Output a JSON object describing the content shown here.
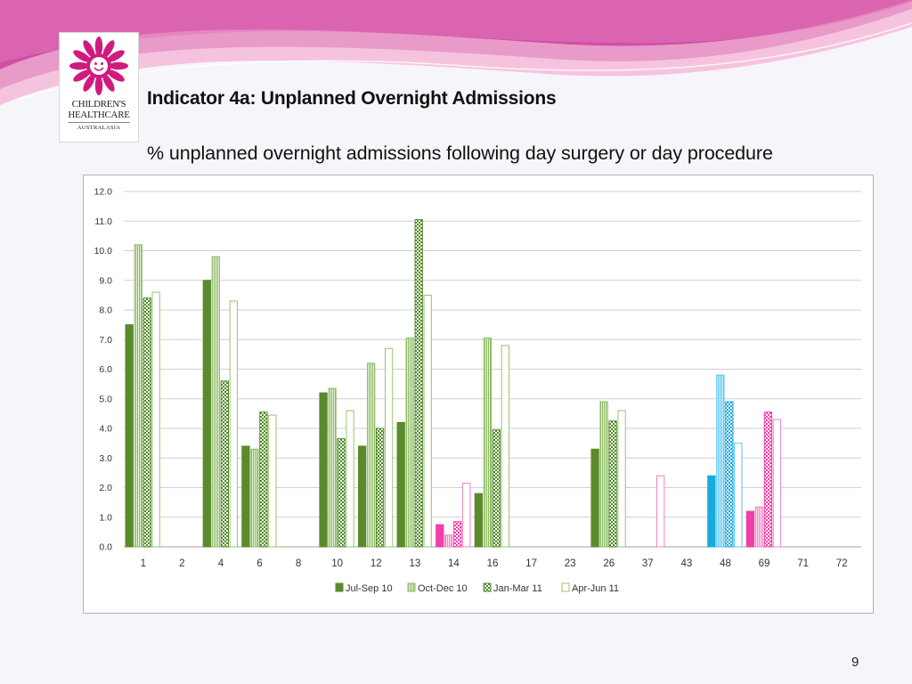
{
  "slide": {
    "title": "Indicator 4a: Unplanned Overnight Admissions",
    "subtitle": "% unplanned overnight admissions following day surgery or day procedure",
    "page_number": "9"
  },
  "logo": {
    "line1": "CHILDREN'S",
    "line2": "HEALTHCARE",
    "line3": "AUSTRALASIA",
    "colors": {
      "flower": "#d11a7e",
      "face": "#ffffff"
    }
  },
  "theme": {
    "header_colors": [
      "#d04fa6",
      "#e89ac8",
      "#f6c3de"
    ],
    "background": "#f6f6fa"
  },
  "chart_data": {
    "type": "bar",
    "title": "",
    "xlabel": "",
    "ylabel": "",
    "ylim": [
      0,
      12
    ],
    "ytick_step": 1,
    "yticks": [
      "0.0",
      "1.0",
      "2.0",
      "3.0",
      "4.0",
      "5.0",
      "6.0",
      "7.0",
      "8.0",
      "9.0",
      "10.0",
      "11.0",
      "12.0"
    ],
    "grid": true,
    "legend_position": "bottom",
    "categories": [
      "1",
      "2",
      "4",
      "6",
      "8",
      "10",
      "12",
      "13",
      "14",
      "16",
      "17",
      "23",
      "26",
      "37",
      "43",
      "48",
      "69",
      "71",
      "72"
    ],
    "series": [
      {
        "name": "Jul-Sep 10",
        "pattern": "solid",
        "color": "#5a8a2c",
        "values": [
          7.5,
          null,
          9.0,
          3.4,
          null,
          5.2,
          3.4,
          4.2,
          0.75,
          1.8,
          null,
          null,
          3.3,
          null,
          null,
          2.4,
          1.2,
          null,
          null
        ]
      },
      {
        "name": "Oct-Dec 10",
        "pattern": "vertical",
        "color": "#8dbb62",
        "values": [
          10.2,
          null,
          9.8,
          3.3,
          null,
          5.35,
          6.2,
          7.05,
          0.4,
          7.05,
          null,
          null,
          4.9,
          null,
          null,
          5.8,
          1.35,
          null,
          null
        ]
      },
      {
        "name": "Jan-Mar 11",
        "pattern": "checker",
        "color": "#4f8a28",
        "values": [
          8.4,
          null,
          5.6,
          4.55,
          null,
          3.65,
          4.0,
          11.05,
          0.85,
          3.95,
          null,
          null,
          4.25,
          null,
          null,
          4.9,
          4.55,
          null,
          null
        ]
      },
      {
        "name": "Apr-Jun 11",
        "pattern": "hollow",
        "color": "#9cc46f",
        "values": [
          8.6,
          null,
          8.3,
          4.45,
          null,
          4.6,
          6.7,
          8.5,
          2.15,
          6.8,
          null,
          null,
          4.6,
          2.4,
          null,
          3.5,
          4.3,
          null,
          null
        ]
      }
    ],
    "highlight_colors": {
      "14": {
        "dark": "#f23ea8",
        "light": "#ee84c4"
      },
      "37": {
        "dark": "#f23ea8",
        "light": "#ee84c4"
      },
      "48": {
        "dark": "#1aa8e0",
        "light": "#5cc4ee"
      },
      "69": {
        "dark": "#f23ea8",
        "light": "#ee84c4"
      }
    }
  }
}
